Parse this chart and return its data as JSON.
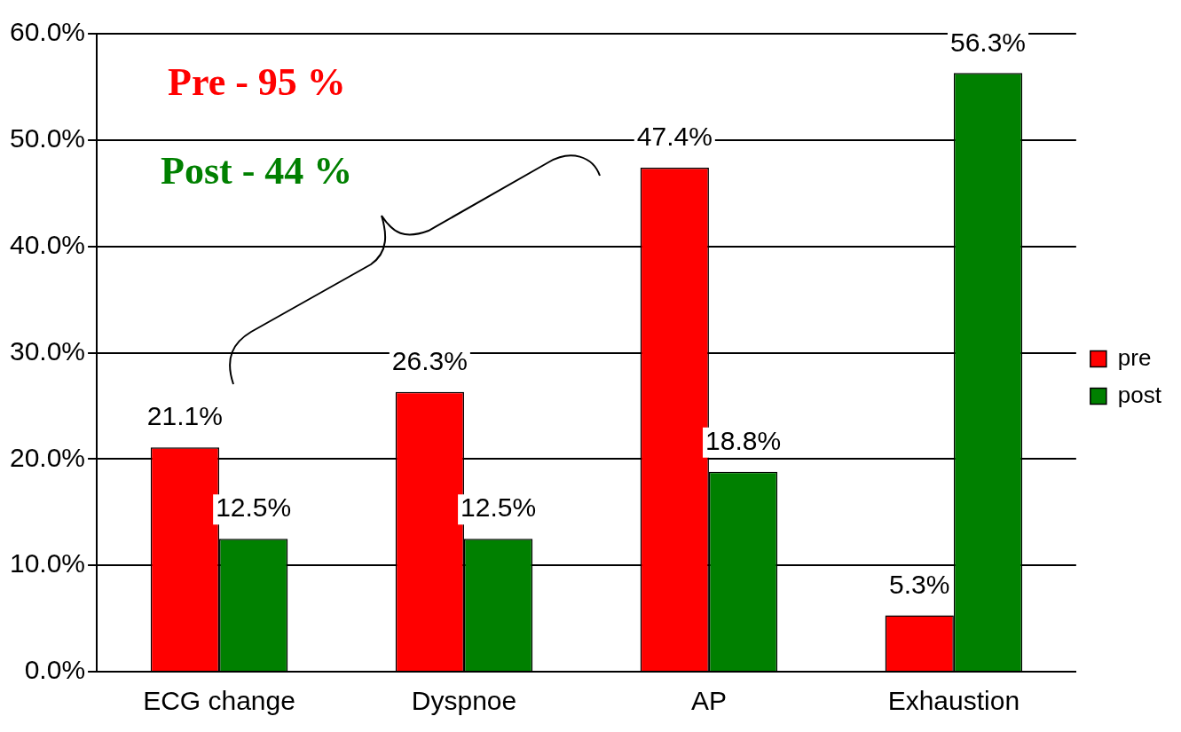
{
  "chart_data": {
    "type": "bar",
    "categories": [
      "ECG change",
      "Dyspnoe",
      "AP",
      "Exhaustion"
    ],
    "series": [
      {
        "name": "pre",
        "color": "#ff0000",
        "values": [
          21.1,
          26.3,
          47.4,
          5.3
        ],
        "value_labels": [
          "21.1%",
          "26.3%",
          "47.4%",
          "5.3%"
        ]
      },
      {
        "name": "post",
        "color": "#008000",
        "values": [
          12.5,
          12.5,
          18.8,
          56.3
        ],
        "value_labels": [
          "12.5%",
          "12.5%",
          "18.8%",
          "56.3%"
        ]
      }
    ],
    "ylim": [
      0,
      60
    ],
    "yticks": [
      {
        "value": 0,
        "label": "0.0%"
      },
      {
        "value": 10,
        "label": "10.0%"
      },
      {
        "value": 20,
        "label": "20.0%"
      },
      {
        "value": 30,
        "label": "30.0%"
      },
      {
        "value": 40,
        "label": "40.0%"
      },
      {
        "value": 50,
        "label": "50.0%"
      },
      {
        "value": 60,
        "label": "60.0%"
      }
    ],
    "grid": "y",
    "legend": "right",
    "annotations": [
      "Pre - 95 %",
      "Post - 44 %"
    ]
  }
}
